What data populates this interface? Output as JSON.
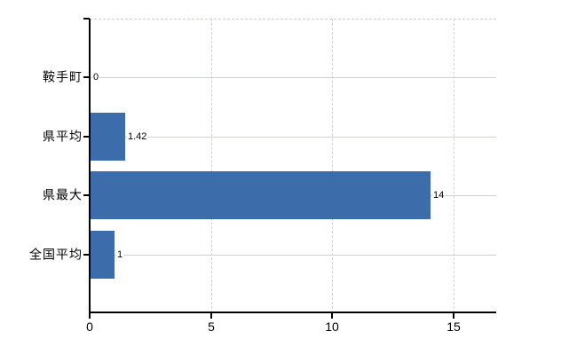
{
  "chart_style": {
    "background": "#ffffff",
    "bar_color": "#3c6ca9",
    "grid_color": "#ccd4cc",
    "axis_color": "#000000",
    "text_color": "#000000"
  },
  "chart_data": {
    "type": "bar",
    "orientation": "horizontal",
    "title": "",
    "xlabel": "",
    "ylabel": "",
    "categories": [
      "鞍手町",
      "県平均",
      "県最大",
      "全国平均"
    ],
    "values": [
      0,
      1.42,
      14,
      1
    ],
    "value_labels": [
      "0",
      "1.42",
      "14",
      "1"
    ],
    "x_ticks": [
      0,
      5,
      10,
      15
    ],
    "x_tick_labels": [
      "0",
      "5",
      "10",
      "15"
    ],
    "x_gridlines": [
      5,
      10,
      15
    ],
    "xlim": [
      0,
      16.8
    ],
    "grid": true,
    "legend": "none"
  }
}
